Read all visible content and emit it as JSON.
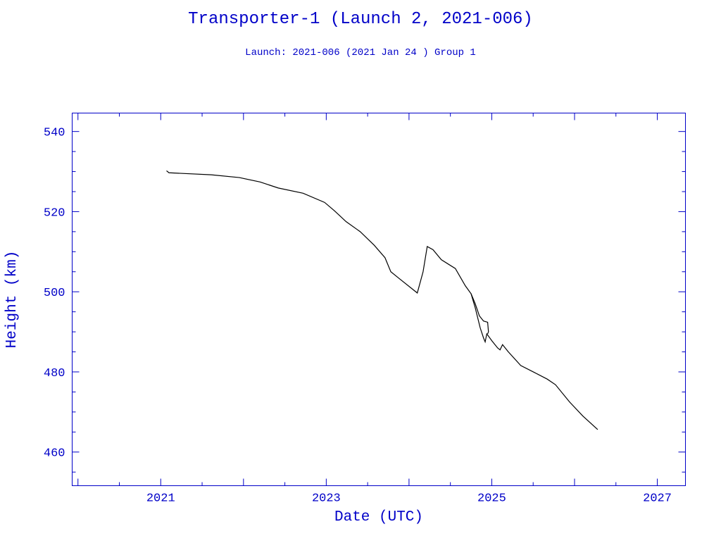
{
  "chart_data": {
    "type": "line",
    "title": "Transporter-1 (Launch 2, 2021-006)",
    "subtitle": "Launch: 2021-006  (2021 Jan 24 )  Group 1",
    "xlabel": "Date (UTC)",
    "ylabel": "Height (km)",
    "xlim": [
      2019.93,
      2027.34
    ],
    "ylim": [
      451.6,
      544.6
    ],
    "x_ticks": [
      2021,
      2023,
      2025,
      2027
    ],
    "x_tick_labels": [
      "2021",
      "2023",
      "2025",
      "2027"
    ],
    "y_ticks": [
      460,
      480,
      500,
      520,
      540
    ],
    "y_tick_labels": [
      "460",
      "480",
      "500",
      "520",
      "540"
    ],
    "grid": false,
    "axis_color": "#0000c8",
    "line_color": "#000000",
    "series": [
      {
        "name": "main",
        "points": [
          [
            2021.07,
            530.2
          ],
          [
            2021.1,
            529.7
          ],
          [
            2021.61,
            529.2
          ],
          [
            2021.95,
            528.5
          ],
          [
            2022.2,
            527.4
          ],
          [
            2022.42,
            525.9
          ],
          [
            2022.72,
            524.6
          ],
          [
            2022.98,
            522.3
          ],
          [
            2023.1,
            520.2
          ],
          [
            2023.24,
            517.5
          ],
          [
            2023.41,
            515
          ],
          [
            2023.58,
            511.6
          ],
          [
            2023.71,
            508.5
          ],
          [
            2023.78,
            505
          ],
          [
            2023.87,
            503.5
          ],
          [
            2024.1,
            499.7
          ],
          [
            2024.17,
            505
          ],
          [
            2024.22,
            511.3
          ],
          [
            2024.29,
            510.5
          ],
          [
            2024.39,
            508
          ],
          [
            2024.56,
            505.8
          ],
          [
            2024.68,
            501.5
          ],
          [
            2024.75,
            499.5
          ],
          [
            2024.8,
            496
          ],
          [
            2024.86,
            491
          ],
          [
            2024.9,
            488.5
          ],
          [
            2024.92,
            487.5
          ],
          [
            2024.94,
            489.5
          ],
          [
            2025.0,
            487.8
          ],
          [
            2025.07,
            486
          ],
          [
            2025.1,
            485.5
          ],
          [
            2025.13,
            486.8
          ],
          [
            2025.2,
            485
          ],
          [
            2025.35,
            481.6
          ],
          [
            2025.52,
            479.8
          ],
          [
            2025.67,
            478.2
          ],
          [
            2025.77,
            476.8
          ],
          [
            2025.94,
            472.5
          ],
          [
            2026.1,
            469
          ],
          [
            2026.28,
            465.6
          ]
        ]
      },
      {
        "name": "branch",
        "points": [
          [
            2024.75,
            499.5
          ],
          [
            2024.8,
            497
          ],
          [
            2024.85,
            494
          ],
          [
            2024.9,
            492.7
          ],
          [
            2024.95,
            492.4
          ],
          [
            2024.96,
            490
          ],
          [
            2024.95,
            489.5
          ]
        ]
      }
    ]
  }
}
